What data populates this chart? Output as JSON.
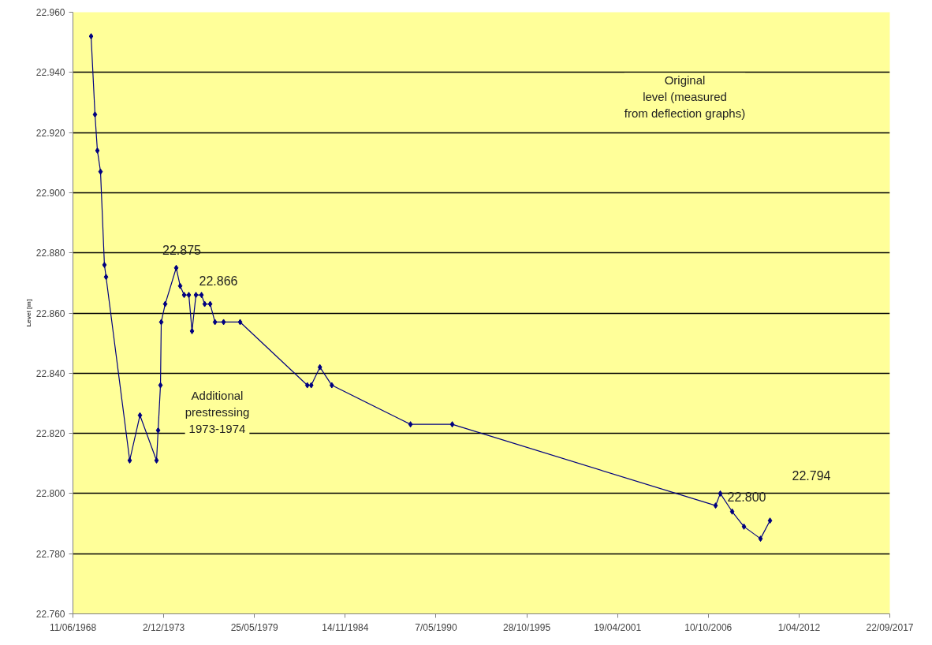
{
  "chart_data": {
    "type": "line",
    "ylabel": "Level [m]",
    "x": [
      "1969-07-16",
      "1969-10-10",
      "1969-12-02",
      "1970-02-09",
      "1970-05-06",
      "1970-06-11",
      "1971-11-14",
      "1972-06-27",
      "1973-06-27",
      "1973-08-01",
      "1973-09-22",
      "1973-10-09",
      "1974-01-04",
      "1974-09-04",
      "1974-11-30",
      "1975-02-25",
      "1975-06-09",
      "1975-08-18",
      "1975-11-13",
      "1976-03-14",
      "1976-05-23",
      "1976-09-21",
      "1977-01-05",
      "1977-07-14",
      "1978-07-13",
      "1982-08-01",
      "1982-10-27",
      "1983-05-06",
      "1984-01-23",
      "1988-10-22",
      "1991-04-30",
      "2007-03-20",
      "2007-07-02",
      "2008-03-19",
      "2008-12-04",
      "2009-12-04",
      "2010-07-01"
    ],
    "series": [
      {
        "color": "#000080",
        "values": [
          22.952,
          22.926,
          22.914,
          22.907,
          22.876,
          22.872,
          22.811,
          22.826,
          22.811,
          22.821,
          22.836,
          22.857,
          22.863,
          22.875,
          22.869,
          22.866,
          22.866,
          22.854,
          22.866,
          22.866,
          22.863,
          22.863,
          22.857,
          22.857,
          22.857,
          22.836,
          22.836,
          22.842,
          22.836,
          22.823,
          22.823,
          22.796,
          22.8,
          22.794,
          22.789,
          22.785,
          22.791
        ]
      }
    ],
    "xlim": [
      "1968-06-11",
      "2017-09-22"
    ],
    "xticks": [
      {
        "value": "1968-06-11",
        "label": "11/06/1968"
      },
      {
        "value": "1973-12-02",
        "label": "2/12/1973"
      },
      {
        "value": "1979-05-25",
        "label": "25/05/1979"
      },
      {
        "value": "1984-11-14",
        "label": "14/11/1984"
      },
      {
        "value": "1990-05-07",
        "label": "7/05/1990"
      },
      {
        "value": "1995-10-28",
        "label": "28/10/1995"
      },
      {
        "value": "2001-04-19",
        "label": "19/04/2001"
      },
      {
        "value": "2006-10-10",
        "label": "10/10/2006"
      },
      {
        "value": "2012-04-01",
        "label": "1/04/2012"
      },
      {
        "value": "2017-09-22",
        "label": "22/09/2017"
      }
    ],
    "ylim": [
      22.76,
      22.96
    ],
    "yticks": [
      {
        "value": 22.76,
        "label": "22.760"
      },
      {
        "value": 22.78,
        "label": "22.780"
      },
      {
        "value": 22.8,
        "label": "22.800"
      },
      {
        "value": 22.82,
        "label": "22.820"
      },
      {
        "value": 22.84,
        "label": "22.840"
      },
      {
        "value": 22.86,
        "label": "22.860"
      },
      {
        "value": 22.88,
        "label": "22.880"
      },
      {
        "value": 22.9,
        "label": "22.900"
      },
      {
        "value": 22.92,
        "label": "22.920"
      },
      {
        "value": 22.94,
        "label": "22.940"
      },
      {
        "value": 22.96,
        "label": "22.960"
      }
    ],
    "grid": "y",
    "marker": "diamond",
    "line_style": "solid",
    "annotations": [
      {
        "text": "22.875",
        "x": "1974-09-04",
        "y": 22.875
      },
      {
        "text": "22.866",
        "x": "1975-11-13",
        "y": 22.866
      },
      {
        "text": "22.800",
        "x": "2007-07-02",
        "y": 22.8
      },
      "22.794",
      "Original\nlevel (measured\nfrom deflection graphs)",
      "Additional\nprestressing\n1973-1974"
    ]
  }
}
